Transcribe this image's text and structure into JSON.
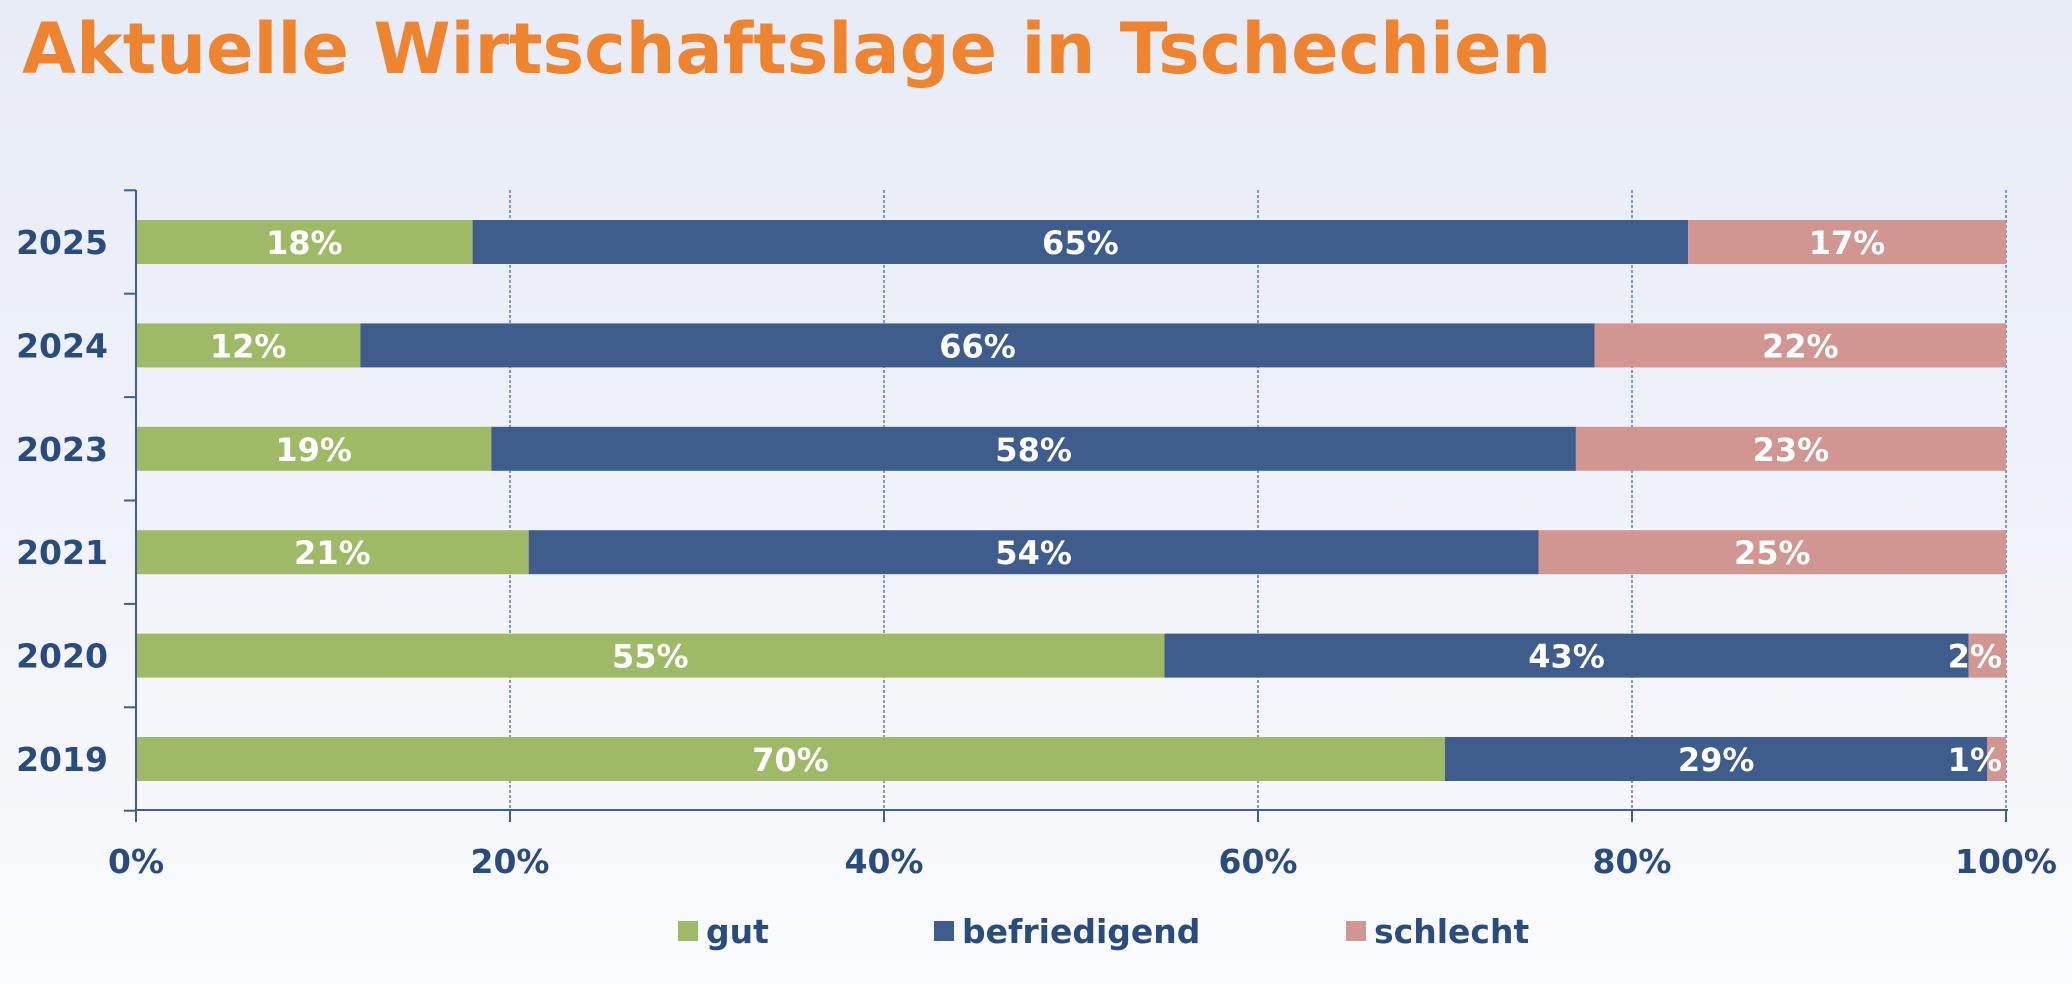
{
  "chart_data": {
    "type": "bar",
    "orientation": "horizontal",
    "stacked": true,
    "title": "Aktuelle Wirtschaftslage in Tschechien",
    "categories": [
      "2025",
      "2024",
      "2023",
      "2021",
      "2020",
      "2019"
    ],
    "series": [
      {
        "name": "gut",
        "color": "#9fba66",
        "values": [
          18,
          12,
          19,
          21,
          55,
          70
        ]
      },
      {
        "name": "befriedigend",
        "color": "#3f5d8c",
        "values": [
          65,
          66,
          58,
          54,
          43,
          29
        ]
      },
      {
        "name": "schlecht",
        "color": "#d19692",
        "values": [
          17,
          22,
          23,
          25,
          2,
          1
        ]
      }
    ],
    "xlim": [
      0,
      100
    ],
    "x_ticks": [
      0,
      20,
      40,
      60,
      80,
      100
    ],
    "x_tick_suffix": "%",
    "value_label_suffix": "%",
    "grid": true,
    "legend_position": "bottom-center",
    "colors": {
      "title": "#ee8430",
      "axis_text": "#2a4c7d",
      "axis_line": "#3d5f92",
      "label": "#ffffff"
    }
  }
}
